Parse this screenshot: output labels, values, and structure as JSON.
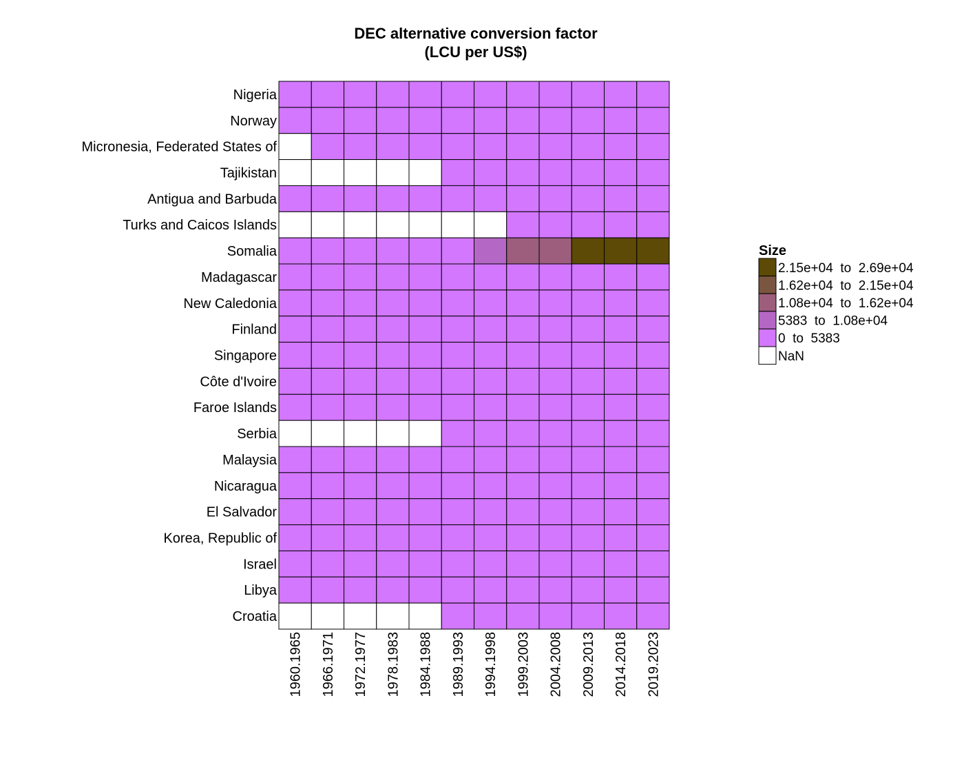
{
  "chart_data": {
    "type": "heatmap",
    "title": "DEC alternative conversion factor",
    "subtitle": "(LCU per US$)",
    "xlabel": "",
    "ylabel": "",
    "x_categories": [
      "1960.1965",
      "1966.1971",
      "1972.1977",
      "1978.1983",
      "1984.1988",
      "1989.1993",
      "1994.1998",
      "1999.2003",
      "2004.2008",
      "2009.2013",
      "2014.2018",
      "2019.2023"
    ],
    "y_categories": [
      "Nigeria",
      "Norway",
      "Micronesia, Federated States of",
      "Tajikistan",
      "Antigua and Barbuda",
      "Turks and Caicos Islands",
      "Somalia",
      "Madagascar",
      "New Caledonia",
      "Finland",
      "Singapore",
      "Côte d'Ivoire",
      "Faroe Islands",
      "Serbia",
      "Malaysia",
      "Nicaragua",
      "El Salvador",
      "Korea, Republic of",
      "Israel",
      "Libya",
      "Croatia"
    ],
    "bins": [
      "0 to 5383",
      "5383 to 1.08e+04",
      "1.08e+04 to 1.62e+04",
      "1.62e+04 to 2.15e+04",
      "2.15e+04 to 2.69e+04"
    ],
    "values": [
      [
        0,
        0,
        0,
        0,
        0,
        0,
        0,
        0,
        0,
        0,
        0,
        0
      ],
      [
        0,
        0,
        0,
        0,
        0,
        0,
        0,
        0,
        0,
        0,
        0,
        0
      ],
      [
        null,
        0,
        0,
        0,
        0,
        0,
        0,
        0,
        0,
        0,
        0,
        0
      ],
      [
        null,
        null,
        null,
        null,
        null,
        0,
        0,
        0,
        0,
        0,
        0,
        0
      ],
      [
        0,
        0,
        0,
        0,
        0,
        0,
        0,
        0,
        0,
        0,
        0,
        0
      ],
      [
        null,
        null,
        null,
        null,
        null,
        null,
        null,
        0,
        0,
        0,
        0,
        0
      ],
      [
        0,
        0,
        0,
        0,
        0,
        0,
        1,
        2,
        2,
        4,
        4,
        4
      ],
      [
        0,
        0,
        0,
        0,
        0,
        0,
        0,
        0,
        0,
        0,
        0,
        0
      ],
      [
        0,
        0,
        0,
        0,
        0,
        0,
        0,
        0,
        0,
        0,
        0,
        0
      ],
      [
        0,
        0,
        0,
        0,
        0,
        0,
        0,
        0,
        0,
        0,
        0,
        0
      ],
      [
        0,
        0,
        0,
        0,
        0,
        0,
        0,
        0,
        0,
        0,
        0,
        0
      ],
      [
        0,
        0,
        0,
        0,
        0,
        0,
        0,
        0,
        0,
        0,
        0,
        0
      ],
      [
        0,
        0,
        0,
        0,
        0,
        0,
        0,
        0,
        0,
        0,
        0,
        0
      ],
      [
        null,
        null,
        null,
        null,
        null,
        0,
        0,
        0,
        0,
        0,
        0,
        0
      ],
      [
        0,
        0,
        0,
        0,
        0,
        0,
        0,
        0,
        0,
        0,
        0,
        0
      ],
      [
        0,
        0,
        0,
        0,
        0,
        0,
        0,
        0,
        0,
        0,
        0,
        0
      ],
      [
        0,
        0,
        0,
        0,
        0,
        0,
        0,
        0,
        0,
        0,
        0,
        0
      ],
      [
        0,
        0,
        0,
        0,
        0,
        0,
        0,
        0,
        0,
        0,
        0,
        0
      ],
      [
        0,
        0,
        0,
        0,
        0,
        0,
        0,
        0,
        0,
        0,
        0,
        0
      ],
      [
        0,
        0,
        0,
        0,
        0,
        0,
        0,
        0,
        0,
        0,
        0,
        0
      ],
      [
        null,
        null,
        null,
        null,
        null,
        0,
        0,
        0,
        0,
        0,
        0,
        0
      ]
    ],
    "legend": {
      "title": "Size",
      "position": "right",
      "entries": [
        {
          "label": "2.15e+04  to  2.69e+04",
          "color": "#5c4a06"
        },
        {
          "label": "1.62e+04  to  2.15e+04",
          "color": "#7a5540"
        },
        {
          "label": "1.08e+04  to  1.62e+04",
          "color": "#9c5e7c"
        },
        {
          "label": "5383  to  1.08e+04",
          "color": "#b467c4"
        },
        {
          "label": "0  to  5383",
          "color": "#d277fe"
        },
        {
          "label": "NaN",
          "color": "#ffffff"
        }
      ]
    },
    "bin_colors": [
      "#d277fe",
      "#b467c4",
      "#9c5e7c",
      "#7a5540",
      "#5c4a06"
    ],
    "nan_color": "#ffffff"
  }
}
